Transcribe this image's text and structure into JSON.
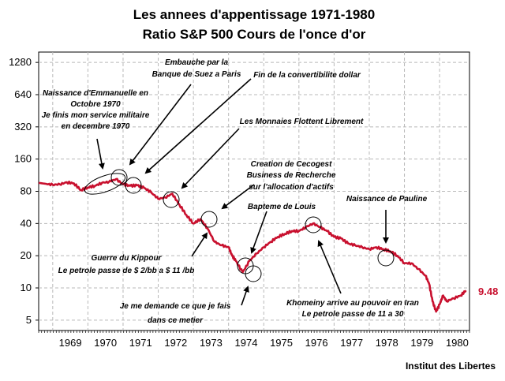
{
  "chart_data": {
    "type": "line",
    "title": "Les annees d'appentissage 1971-1980",
    "subtitle": "Ratio S&P 500 Cours de l'once d'or",
    "y_scale": "log2",
    "ylim": [
      4,
      1600
    ],
    "y_ticks": [
      5,
      10,
      20,
      40,
      80,
      160,
      320,
      640,
      1280
    ],
    "xlim": [
      1968.6,
      1980.85
    ],
    "x_ticks": [
      "1969",
      "1970",
      "1971",
      "1972",
      "1973",
      "1974",
      "1975",
      "1976",
      "1977",
      "1978",
      "1979",
      "1980"
    ],
    "grid": true,
    "series": [
      {
        "name": "Ratio S&P 500 / Or",
        "color": "#c8102e",
        "x": [
          1968.6,
          1968.8,
          1969.0,
          1969.2,
          1969.4,
          1969.6,
          1969.8,
          1970.0,
          1970.2,
          1970.4,
          1970.6,
          1970.8,
          1971.0,
          1971.2,
          1971.4,
          1971.6,
          1971.8,
          1972.0,
          1972.2,
          1972.4,
          1972.6,
          1972.8,
          1973.0,
          1973.2,
          1973.4,
          1973.6,
          1973.8,
          1974.0,
          1974.1,
          1974.2,
          1974.4,
          1974.6,
          1974.8,
          1975.0,
          1975.2,
          1975.4,
          1975.6,
          1975.8,
          1976.0,
          1976.2,
          1976.4,
          1976.6,
          1976.8,
          1977.0,
          1977.2,
          1977.4,
          1977.6,
          1977.8,
          1978.0,
          1978.2,
          1978.4,
          1978.6,
          1978.8,
          1979.0,
          1979.2,
          1979.4,
          1979.6,
          1979.7,
          1979.8,
          1979.9,
          1980.0,
          1980.1,
          1980.2,
          1980.4,
          1980.6,
          1980.75
        ],
        "values": [
          96,
          94,
          92,
          93,
          97,
          95,
          82,
          87,
          90,
          96,
          98,
          104,
          93,
          90,
          91,
          86,
          78,
          68,
          70,
          76,
          60,
          48,
          40,
          44,
          36,
          27,
          25,
          24,
          20,
          18,
          14,
          18,
          21,
          24,
          27,
          30,
          32,
          34,
          34,
          37,
          40,
          37,
          34,
          30,
          29,
          26,
          25,
          24,
          23,
          24,
          23,
          22,
          20,
          17,
          17,
          15,
          13,
          11,
          7.5,
          6,
          7,
          8.5,
          7.5,
          8,
          8.5,
          9.48
        ]
      }
    ],
    "last_value_label": "9.48",
    "annotations": [
      {
        "text": "Naissance d'Emmanuelle en"
      },
      {
        "text": "Octobre 1970"
      },
      {
        "text": "Je finis mon service militaire"
      },
      {
        "text": "en decembre 1970"
      },
      {
        "text": "Embauche par la"
      },
      {
        "text": "Banque de Suez a Paris"
      },
      {
        "text": "Fin de la convertibilite dollar"
      },
      {
        "text": "Les Monnaies Flottent Librement"
      },
      {
        "text": "Creation de Cecogest"
      },
      {
        "text": "Business de Recherche"
      },
      {
        "text": "sur l'allocation d'actifs"
      },
      {
        "text": "Bapteme de Louis"
      },
      {
        "text": "Naissance de Pauline"
      },
      {
        "text": "Guerre du Kippour"
      },
      {
        "text": "Le petrole passe de $ 2/bb a $ 11 /bb"
      },
      {
        "text": "Je me demande ce que je fais"
      },
      {
        "text": "dans ce metier"
      },
      {
        "text": "Khomeiny arrive au pouvoir en Iran"
      },
      {
        "text": "Le petrole passe de 11 a 30"
      }
    ],
    "source": "Institut des Libertes"
  }
}
